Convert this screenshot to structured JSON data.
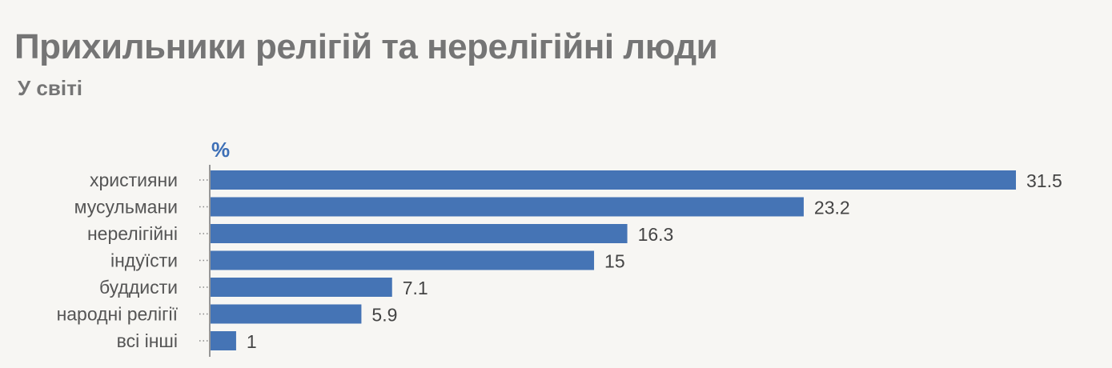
{
  "header": {
    "title": "Прихильники релігій та нерелігійні люди",
    "subtitle": "У світі"
  },
  "chart_data": {
    "type": "bar",
    "orientation": "horizontal",
    "title": "Прихильники релігій та нерелігійні люди",
    "subtitle": "У світі",
    "unit": "%",
    "categories": [
      "християни",
      "мусульмани",
      "нерелігійні",
      "індуїсти",
      "буддисти",
      "народні релігії",
      "всі інші"
    ],
    "values": [
      31.5,
      23.2,
      16.3,
      15,
      7.1,
      5.9,
      1
    ],
    "value_labels": [
      "31.5",
      "23.2",
      "16.3",
      "15",
      "7.1",
      "5.9",
      "1"
    ],
    "xlim": [
      0,
      31.5
    ],
    "grid": false,
    "colors": {
      "bar": "#4574b5",
      "axis": "#777777",
      "unit": "#3d6fb6",
      "title": "#757575"
    }
  }
}
